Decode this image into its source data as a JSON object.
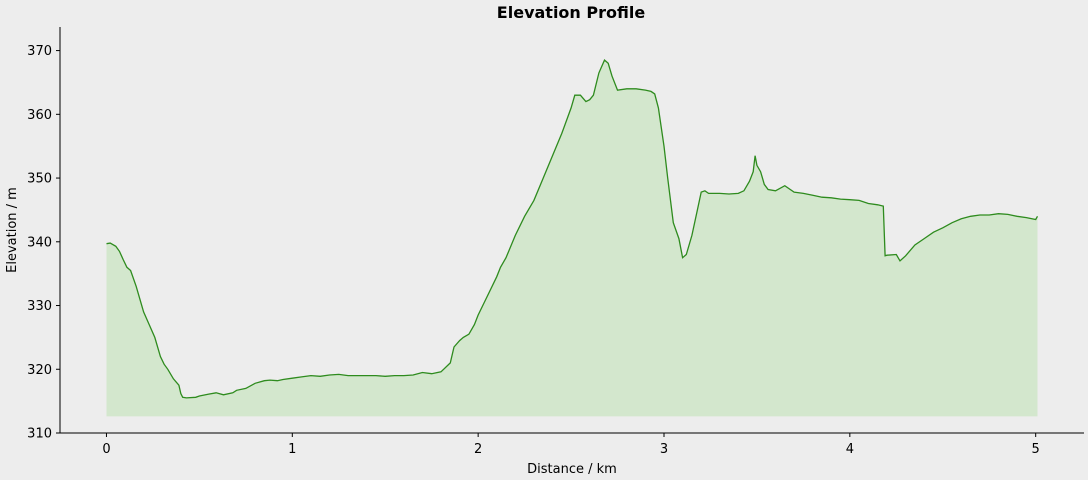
{
  "chart_data": {
    "type": "area",
    "title": "Elevation Profile",
    "xlabel": "Distance / km",
    "ylabel": "Elevation / m",
    "xlim": [
      -0.25,
      5.26
    ],
    "ylim": [
      310,
      373.7
    ],
    "x_ticks": [
      "0",
      "1",
      "2",
      "3",
      "4",
      "5"
    ],
    "y_ticks": [
      "310",
      "320",
      "330",
      "340",
      "350",
      "360",
      "370"
    ],
    "fill_base": 312.6,
    "grid": false,
    "legend": "none",
    "colors": {
      "line": "#2e8b1e",
      "fill": "#d3e7cd",
      "background": "#ededed"
    },
    "series": [
      {
        "x": [
          0.0,
          0.02,
          0.05,
          0.07,
          0.09,
          0.11,
          0.13,
          0.16,
          0.18,
          0.2,
          0.23,
          0.26,
          0.29,
          0.31,
          0.33,
          0.36,
          0.39,
          0.4,
          0.41,
          0.43,
          0.48,
          0.5,
          0.55,
          0.59,
          0.63,
          0.68,
          0.7,
          0.75,
          0.8,
          0.85,
          0.88,
          0.92,
          0.95,
          1.0,
          1.05,
          1.1,
          1.15,
          1.2,
          1.25,
          1.3,
          1.35,
          1.4,
          1.45,
          1.5,
          1.55,
          1.6,
          1.65,
          1.7,
          1.75,
          1.8,
          1.85,
          1.87,
          1.9,
          1.92,
          1.95,
          1.98,
          2.0,
          2.05,
          2.1,
          2.12,
          2.15,
          2.2,
          2.25,
          2.3,
          2.35,
          2.4,
          2.45,
          2.5,
          2.52,
          2.55,
          2.58,
          2.6,
          2.62,
          2.65,
          2.68,
          2.7,
          2.72,
          2.75,
          2.8,
          2.85,
          2.9,
          2.93,
          2.95,
          2.97,
          3.0,
          3.02,
          3.05,
          3.08,
          3.1,
          3.12,
          3.15,
          3.18,
          3.2,
          3.22,
          3.24,
          3.3,
          3.35,
          3.4,
          3.43,
          3.46,
          3.48,
          3.49,
          3.5,
          3.52,
          3.54,
          3.56,
          3.6,
          3.65,
          3.7,
          3.75,
          3.8,
          3.85,
          3.9,
          3.95,
          4.0,
          4.05,
          4.1,
          4.15,
          4.18,
          4.19,
          4.2,
          4.25,
          4.27,
          4.3,
          4.35,
          4.4,
          4.45,
          4.5,
          4.55,
          4.6,
          4.65,
          4.7,
          4.75,
          4.8,
          4.85,
          4.9,
          4.95,
          5.0,
          5.01
        ],
        "y": [
          339.7,
          339.8,
          339.3,
          338.5,
          337.2,
          336.0,
          335.5,
          333.0,
          331.0,
          329.0,
          327.0,
          325.0,
          322.0,
          320.8,
          320.0,
          318.5,
          317.5,
          316.2,
          315.6,
          315.5,
          315.6,
          315.8,
          316.1,
          316.3,
          316.0,
          316.3,
          316.7,
          317.0,
          317.8,
          318.2,
          318.3,
          318.2,
          318.4,
          318.6,
          318.8,
          319.0,
          318.9,
          319.1,
          319.2,
          319.0,
          319.0,
          319.0,
          319.0,
          318.9,
          319.0,
          319.0,
          319.1,
          319.5,
          319.3,
          319.6,
          321.0,
          323.5,
          324.5,
          325.0,
          325.5,
          327.0,
          328.5,
          331.5,
          334.5,
          336.0,
          337.5,
          341.0,
          344.0,
          346.5,
          350.0,
          353.5,
          357.0,
          361.0,
          363.0,
          363.0,
          362.0,
          362.3,
          363.0,
          366.5,
          368.5,
          368.0,
          366.0,
          363.8,
          364.0,
          364.0,
          363.8,
          363.6,
          363.2,
          361.0,
          355.0,
          350.0,
          343.0,
          340.5,
          337.5,
          338.0,
          341.0,
          345.0,
          347.8,
          348.0,
          347.6,
          347.6,
          347.5,
          347.6,
          348.0,
          349.5,
          351.0,
          353.5,
          352.0,
          351.0,
          349.0,
          348.2,
          348.0,
          348.8,
          347.8,
          347.6,
          347.3,
          347.0,
          346.9,
          346.7,
          346.6,
          346.5,
          346.0,
          345.8,
          345.6,
          337.8,
          337.9,
          338.0,
          337.0,
          337.8,
          339.5,
          340.5,
          341.5,
          342.2,
          343.0,
          343.6,
          344.0,
          344.2,
          344.2,
          344.4,
          344.3,
          344.0,
          343.8,
          343.5,
          344.0
        ]
      }
    ]
  }
}
